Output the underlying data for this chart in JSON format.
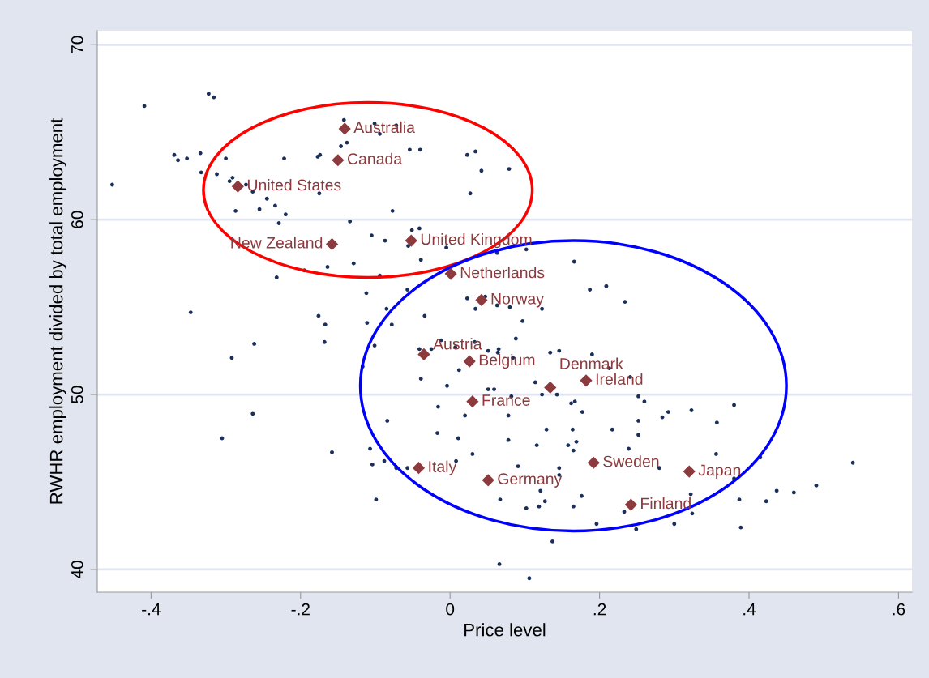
{
  "chart_data": {
    "type": "scatter",
    "xlabel": "Price level",
    "ylabel": "RWHR employment divided by total employment",
    "xlim": [
      -0.472,
      0.618
    ],
    "ylim": [
      38.7,
      70.8
    ],
    "xticks": [
      {
        "value": -0.4,
        "label": "-.4"
      },
      {
        "value": -0.2,
        "label": "-.2"
      },
      0,
      {
        "value": 0.2,
        "label": ".2"
      },
      {
        "value": 0.4,
        "label": ".4"
      },
      {
        "value": 0.6,
        "label": ".6"
      }
    ],
    "yticks": [
      40,
      50,
      60,
      70
    ],
    "grid": "y",
    "series": [
      {
        "color": "#1a2f5a",
        "marker": "circle",
        "x": [
          -0.409,
          -0.323,
          -0.316,
          -0.369,
          -0.364,
          -0.352,
          -0.334,
          -0.3,
          -0.222,
          -0.177,
          -0.174,
          -0.142,
          -0.146,
          -0.138,
          -0.452,
          -0.333,
          -0.312,
          -0.291,
          -0.295,
          -0.273,
          -0.264,
          -0.175,
          -0.245,
          -0.255,
          -0.234,
          -0.287,
          -0.22,
          -0.229,
          -0.134,
          -0.105,
          -0.129,
          -0.164,
          -0.195,
          -0.232,
          -0.112,
          -0.347,
          -0.176,
          -0.167,
          -0.111,
          -0.101,
          -0.094,
          -0.072,
          -0.054,
          -0.04,
          0.023,
          0.034,
          0.042,
          0.079,
          0.027,
          -0.077,
          -0.051,
          -0.041,
          -0.087,
          -0.056,
          -0.005,
          -0.039,
          0.063,
          0.102,
          0.166,
          -0.094,
          -0.057,
          0.023,
          0.047,
          0.034,
          0.063,
          0.08,
          0.123,
          0.187,
          0.209,
          0.234,
          0.097,
          -0.034,
          -0.078,
          -0.085,
          -0.262,
          -0.168,
          -0.292,
          -0.117,
          -0.264,
          -0.305,
          -0.158,
          -0.107,
          -0.104,
          -0.101,
          -0.012,
          0.033,
          0.088,
          -0.041,
          -0.025,
          0.007,
          0.051,
          0.065,
          0.064,
          0.084,
          0.134,
          0.146,
          0.19,
          -0.039,
          0.012,
          -0.004,
          0.114,
          0.213,
          0.051,
          0.059,
          0.123,
          0.143,
          0.082,
          0.167,
          0.162,
          0.177,
          -0.016,
          0.02,
          0.078,
          -0.084,
          0.129,
          0.164,
          0.217,
          -0.017,
          0.011,
          0.078,
          0.116,
          0.158,
          0.169,
          0.165,
          0.239,
          0.03,
          0.008,
          0.091,
          -0.088,
          -0.072,
          -0.057,
          0.146,
          0.146,
          0.121,
          0.176,
          -0.099,
          0.067,
          0.102,
          0.119,
          0.127,
          0.165,
          0.233,
          0.196,
          0.137,
          0.066,
          0.106,
          0.241,
          0.252,
          0.26,
          0.292,
          0.284,
          0.323,
          0.38,
          0.252,
          0.357,
          0.252,
          0.356,
          0.415,
          0.28,
          0.539,
          0.49,
          0.437,
          0.46,
          0.322,
          0.387,
          0.423,
          0.324,
          0.3,
          0.249,
          0.389,
          0.38
        ],
        "values": [
          66.5,
          67.2,
          67.0,
          63.7,
          63.4,
          63.5,
          63.8,
          63.5,
          63.5,
          63.6,
          63.7,
          65.7,
          64.2,
          64.4,
          62.0,
          62.7,
          62.6,
          62.4,
          62.2,
          62.0,
          61.6,
          61.5,
          61.2,
          60.6,
          60.8,
          60.5,
          60.3,
          59.8,
          59.9,
          59.1,
          57.5,
          57.3,
          57.1,
          56.7,
          55.8,
          54.7,
          54.5,
          54.0,
          54.1,
          65.5,
          64.9,
          65.4,
          64.0,
          64.0,
          63.7,
          63.9,
          62.8,
          62.9,
          61.5,
          60.5,
          59.4,
          59.5,
          58.8,
          58.5,
          58.4,
          57.7,
          58.1,
          58.3,
          57.6,
          56.8,
          56.0,
          55.5,
          55.6,
          54.9,
          55.1,
          55.0,
          54.9,
          56.0,
          56.2,
          55.3,
          54.2,
          54.5,
          54.0,
          54.9,
          52.9,
          53.0,
          52.1,
          51.6,
          48.9,
          47.5,
          46.7,
          46.9,
          46.0,
          52.8,
          53.1,
          53.0,
          53.2,
          52.6,
          52.6,
          52.7,
          52.5,
          52.6,
          52.4,
          52.1,
          52.4,
          52.5,
          52.3,
          50.9,
          51.4,
          50.5,
          50.7,
          51.5,
          50.3,
          50.3,
          50.0,
          50.0,
          49.9,
          49.6,
          49.5,
          49.0,
          49.3,
          48.8,
          48.8,
          48.5,
          48.0,
          48.0,
          48.0,
          47.8,
          47.5,
          47.4,
          47.1,
          47.1,
          47.3,
          46.8,
          46.9,
          46.6,
          46.2,
          45.9,
          46.2,
          45.8,
          45.8,
          45.8,
          45.4,
          44.5,
          44.2,
          44.0,
          44.0,
          43.5,
          43.6,
          43.9,
          43.6,
          43.3,
          42.6,
          41.6,
          40.3,
          39.5,
          51.0,
          49.9,
          49.6,
          49.0,
          48.7,
          49.1,
          49.4,
          48.5,
          48.4,
          47.7,
          46.6,
          46.4,
          45.8,
          46.1,
          44.8,
          44.5,
          44.4,
          44.3,
          44.0,
          43.9,
          43.2,
          42.6,
          42.3,
          42.4,
          45.2
        ]
      },
      {
        "color": "#8c3a3e",
        "marker": "diamond",
        "x": [
          -0.141,
          -0.15,
          -0.284,
          -0.158,
          -0.052,
          0.001,
          0.042,
          -0.035,
          0.026,
          0.03,
          0.134,
          0.182,
          -0.042,
          0.051,
          0.192,
          0.32,
          0.242
        ],
        "values": [
          65.2,
          63.4,
          61.9,
          58.6,
          58.8,
          56.9,
          55.4,
          52.3,
          51.9,
          49.6,
          50.4,
          50.8,
          45.8,
          45.1,
          46.1,
          45.6,
          43.7
        ]
      }
    ],
    "annotations": [
      {
        "text": "Australia",
        "x": -0.141,
        "y": 65.2
      },
      {
        "text": "Canada",
        "x": -0.15,
        "y": 63.4
      },
      {
        "text": "United States",
        "x": -0.284,
        "y": 61.9
      },
      {
        "text": "New Zealand",
        "x": -0.158,
        "y": 58.6
      },
      {
        "text": "United Kingdom",
        "x": -0.052,
        "y": 58.8
      },
      {
        "text": "Netherlands",
        "x": 0.001,
        "y": 56.9
      },
      {
        "text": "Norway",
        "x": 0.042,
        "y": 55.4
      },
      {
        "text": "Austria",
        "x": -0.035,
        "y": 52.3
      },
      {
        "text": "Belgium",
        "x": 0.026,
        "y": 51.9
      },
      {
        "text": "France",
        "x": 0.03,
        "y": 49.6
      },
      {
        "text": "Denmark",
        "x": 0.134,
        "y": 50.4
      },
      {
        "text": "Ireland",
        "x": 0.182,
        "y": 50.8
      },
      {
        "text": "Italy",
        "x": -0.042,
        "y": 45.8
      },
      {
        "text": "Germany",
        "x": 0.051,
        "y": 45.1
      },
      {
        "text": "Sweden",
        "x": 0.192,
        "y": 46.1
      },
      {
        "text": "Japan",
        "x": 0.32,
        "y": 45.6
      },
      {
        "text": "Finland",
        "x": 0.242,
        "y": 43.7
      }
    ]
  }
}
